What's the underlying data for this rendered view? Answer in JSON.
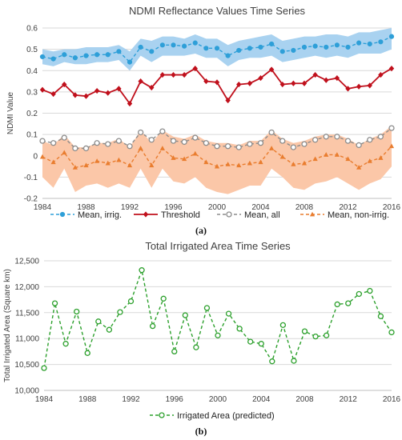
{
  "panel_a_label": "(a)",
  "panel_b_label": "(b)",
  "chart_data": [
    {
      "type": "line",
      "title": "NDMI Reflectance Values Time Series",
      "xlabel": "",
      "ylabel": "NDMI Value",
      "xlim": [
        1984,
        2016
      ],
      "ylim": [
        -0.2,
        0.6
      ],
      "xticks": [
        "1984",
        "1988",
        "1992",
        "1996",
        "2000",
        "2004",
        "2008",
        "2012",
        "2016"
      ],
      "yticks": [
        "-0.2",
        "-0.1",
        "0",
        "0.1",
        "0.2",
        "0.3",
        "0.4",
        "0.5",
        "0.6"
      ],
      "grid": true,
      "legend_position": "bottom",
      "x": [
        1984,
        1985,
        1986,
        1987,
        1988,
        1989,
        1990,
        1991,
        1992,
        1993,
        1994,
        1995,
        1996,
        1997,
        1998,
        1999,
        2000,
        2001,
        2002,
        2003,
        2004,
        2005,
        2006,
        2007,
        2008,
        2009,
        2010,
        2011,
        2012,
        2013,
        2014,
        2015,
        2016
      ],
      "series": [
        {
          "name": "Mean, irrig.",
          "color": "#2e9fd8",
          "marker": "circle",
          "style": "dash",
          "values": [
            0.465,
            0.455,
            0.475,
            0.46,
            0.47,
            0.475,
            0.475,
            0.49,
            0.44,
            0.51,
            0.49,
            0.52,
            0.52,
            0.515,
            0.53,
            0.505,
            0.505,
            0.47,
            0.495,
            0.505,
            0.51,
            0.525,
            0.49,
            0.495,
            0.51,
            0.515,
            0.51,
            0.52,
            0.51,
            0.53,
            0.525,
            0.535,
            0.56
          ],
          "band_upper": [
            0.5,
            0.49,
            0.5,
            0.5,
            0.51,
            0.51,
            0.51,
            0.52,
            0.49,
            0.55,
            0.54,
            0.56,
            0.56,
            0.55,
            0.57,
            0.55,
            0.55,
            0.52,
            0.54,
            0.55,
            0.56,
            0.57,
            0.54,
            0.55,
            0.56,
            0.56,
            0.57,
            0.57,
            0.56,
            0.58,
            0.58,
            0.59,
            0.6
          ],
          "band_lower": [
            0.43,
            0.42,
            0.44,
            0.43,
            0.43,
            0.44,
            0.44,
            0.45,
            0.4,
            0.47,
            0.44,
            0.47,
            0.47,
            0.47,
            0.48,
            0.46,
            0.46,
            0.42,
            0.45,
            0.46,
            0.46,
            0.47,
            0.44,
            0.45,
            0.46,
            0.47,
            0.46,
            0.47,
            0.46,
            0.48,
            0.48,
            0.48,
            0.5
          ],
          "band_color": "#a9d2f0"
        },
        {
          "name": "Threshold",
          "color": "#c0101c",
          "marker": "diamond",
          "style": "solid",
          "values": [
            0.31,
            0.29,
            0.335,
            0.285,
            0.28,
            0.305,
            0.295,
            0.315,
            0.245,
            0.35,
            0.32,
            0.38,
            0.38,
            0.38,
            0.41,
            0.35,
            0.345,
            0.26,
            0.335,
            0.34,
            0.365,
            0.405,
            0.335,
            0.34,
            0.34,
            0.38,
            0.355,
            0.365,
            0.315,
            0.325,
            0.33,
            0.38,
            0.41
          ]
        },
        {
          "name": "Mean, all",
          "color": "#8c8c8c",
          "marker": "open-circle",
          "style": "dash",
          "values": [
            0.07,
            0.06,
            0.085,
            0.035,
            0.035,
            0.06,
            0.055,
            0.07,
            0.045,
            0.11,
            0.075,
            0.115,
            0.07,
            0.065,
            0.085,
            0.06,
            0.045,
            0.045,
            0.04,
            0.055,
            0.06,
            0.11,
            0.07,
            0.04,
            0.055,
            0.075,
            0.09,
            0.09,
            0.07,
            0.05,
            0.075,
            0.09,
            0.13
          ]
        },
        {
          "name": "Mean, non-irrig.",
          "color": "#e97d2f",
          "marker": "triangle",
          "style": "dash",
          "values": [
            -0.005,
            -0.03,
            0.015,
            -0.055,
            -0.045,
            -0.025,
            -0.035,
            -0.02,
            -0.045,
            0.035,
            -0.045,
            0.035,
            -0.01,
            -0.015,
            0.01,
            -0.03,
            -0.05,
            -0.04,
            -0.045,
            -0.035,
            -0.03,
            0.035,
            -0.005,
            -0.04,
            -0.035,
            -0.015,
            0.005,
            0.005,
            -0.015,
            -0.055,
            -0.025,
            -0.01,
            0.045
          ],
          "band_upper": [
            0.07,
            0.05,
            0.1,
            0.04,
            0.04,
            0.06,
            0.06,
            0.08,
            0.04,
            0.12,
            0.06,
            0.12,
            0.09,
            0.08,
            0.1,
            0.07,
            0.06,
            0.06,
            0.05,
            0.07,
            0.07,
            0.12,
            0.08,
            0.06,
            0.07,
            0.09,
            0.1,
            0.1,
            0.08,
            0.05,
            0.08,
            0.1,
            0.14
          ],
          "band_lower": [
            -0.1,
            -0.15,
            -0.06,
            -0.17,
            -0.14,
            -0.13,
            -0.15,
            -0.13,
            -0.15,
            -0.06,
            -0.15,
            -0.06,
            -0.12,
            -0.13,
            -0.1,
            -0.15,
            -0.17,
            -0.18,
            -0.16,
            -0.14,
            -0.14,
            -0.06,
            -0.1,
            -0.15,
            -0.16,
            -0.13,
            -0.12,
            -0.1,
            -0.13,
            -0.16,
            -0.13,
            -0.11,
            -0.05
          ],
          "band_color": "#fbc7a8"
        }
      ]
    },
    {
      "type": "line",
      "title": "Total Irrigated Area Time Series",
      "xlabel": "",
      "ylabel": "Total Irrigated Area (Square km)",
      "xlim": [
        1984,
        2016
      ],
      "ylim": [
        10000,
        12500
      ],
      "xticks": [
        "1984",
        "1988",
        "1992",
        "1996",
        "2000",
        "2004",
        "2008",
        "2012",
        "2016"
      ],
      "yticks": [
        "10,000",
        "10,500",
        "11,000",
        "11,500",
        "12,000",
        "12,500"
      ],
      "grid": true,
      "legend_position": "bottom",
      "x": [
        1984,
        1985,
        1986,
        1987,
        1988,
        1989,
        1990,
        1991,
        1992,
        1993,
        1994,
        1995,
        1996,
        1997,
        1998,
        1999,
        2000,
        2001,
        2002,
        2003,
        2004,
        2005,
        2006,
        2007,
        2008,
        2009,
        2010,
        2011,
        2012,
        2013,
        2014,
        2015,
        2016
      ],
      "series": [
        {
          "name": "Irrigated Area (predicted)",
          "color": "#2ca02c",
          "marker": "open-circle",
          "style": "dash",
          "values": [
            10430,
            11680,
            10900,
            11520,
            10720,
            11330,
            11170,
            11510,
            11720,
            12320,
            11240,
            11770,
            10750,
            11450,
            10830,
            11590,
            11060,
            11480,
            11190,
            10940,
            10900,
            10560,
            11260,
            10570,
            11140,
            11040,
            11060,
            11660,
            11680,
            11860,
            11920,
            11430,
            11120
          ]
        }
      ]
    }
  ]
}
